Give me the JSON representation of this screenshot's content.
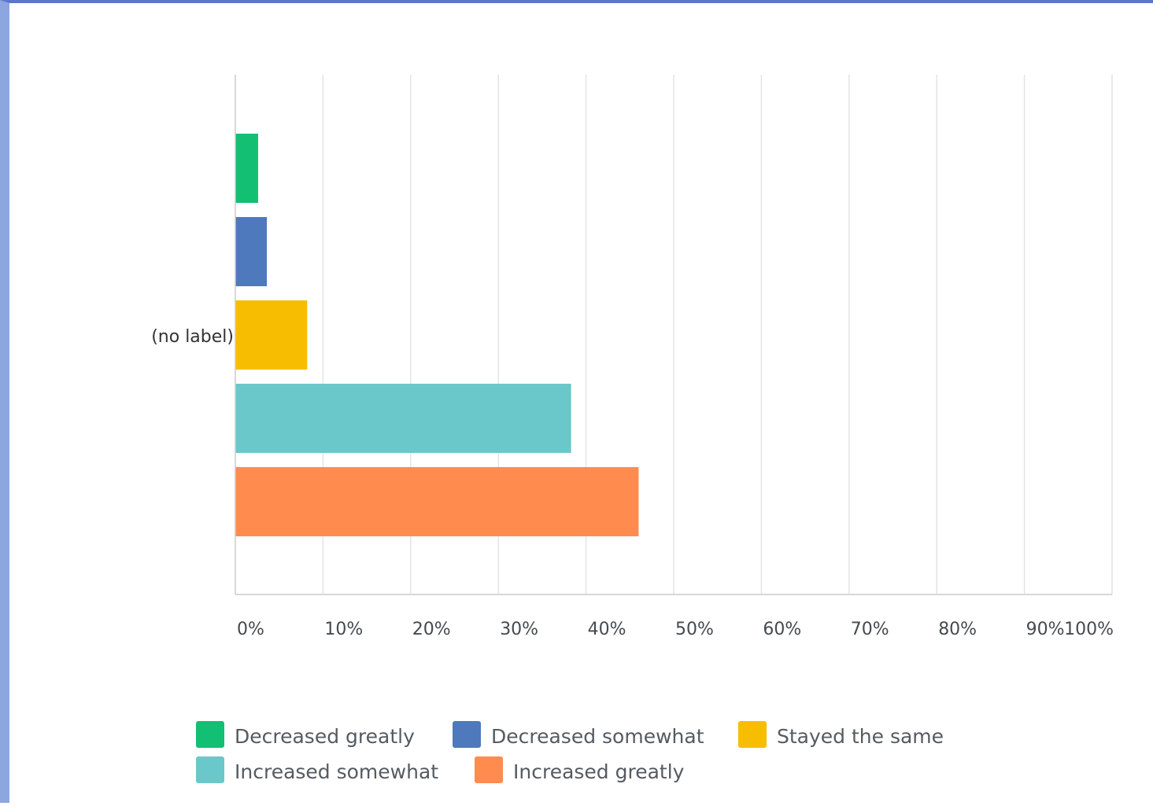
{
  "chart_data": {
    "type": "bar",
    "orientation": "horizontal",
    "categories": [
      "(no label)"
    ],
    "x_ticks": [
      "0%",
      "10%",
      "20%",
      "30%",
      "40%",
      "50%",
      "60%",
      "70%",
      "80%",
      "90%",
      "100%"
    ],
    "xlim": [
      0,
      100
    ],
    "grid": true,
    "legend_position": "bottom",
    "series": [
      {
        "name": "Decreased greatly",
        "values": [
          2.6
        ],
        "color": "#12bf73"
      },
      {
        "name": "Decreased somewhat",
        "values": [
          3.6
        ],
        "color": "#4f79bd"
      },
      {
        "name": "Stayed the same",
        "values": [
          8.2
        ],
        "color": "#f7bd00"
      },
      {
        "name": "Increased somewhat",
        "values": [
          38.3
        ],
        "color": "#6bc8ca"
      },
      {
        "name": "Increased greatly",
        "values": [
          46.0
        ],
        "color": "#ff8b4f"
      }
    ]
  }
}
